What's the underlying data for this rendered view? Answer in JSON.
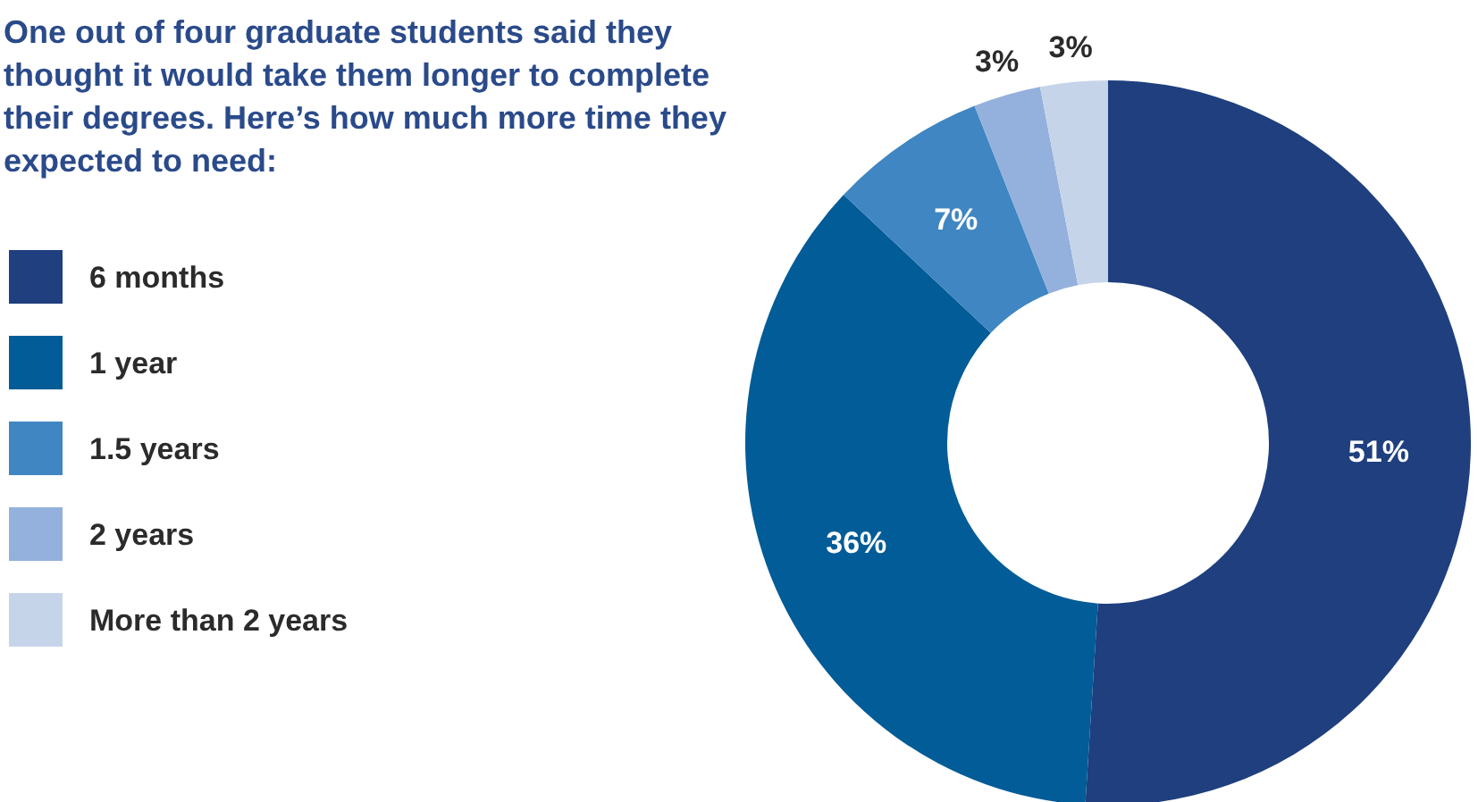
{
  "chart_data": {
    "type": "donut",
    "title": "One out of four graduate students said they thought it would take them longer to complete their degrees. Here’s how much more time they expected to need:",
    "categories": [
      "6 months",
      "1 year",
      "1.5 years",
      "2 years",
      "More than 2 years"
    ],
    "values": [
      51,
      36,
      7,
      3,
      3
    ],
    "value_labels": [
      "51%",
      "36%",
      "7%",
      "3%",
      "3%"
    ],
    "colors": [
      "#1f3f7e",
      "#025c97",
      "#3f86c2",
      "#93b1dc",
      "#c6d4ea"
    ],
    "legend": "left"
  }
}
